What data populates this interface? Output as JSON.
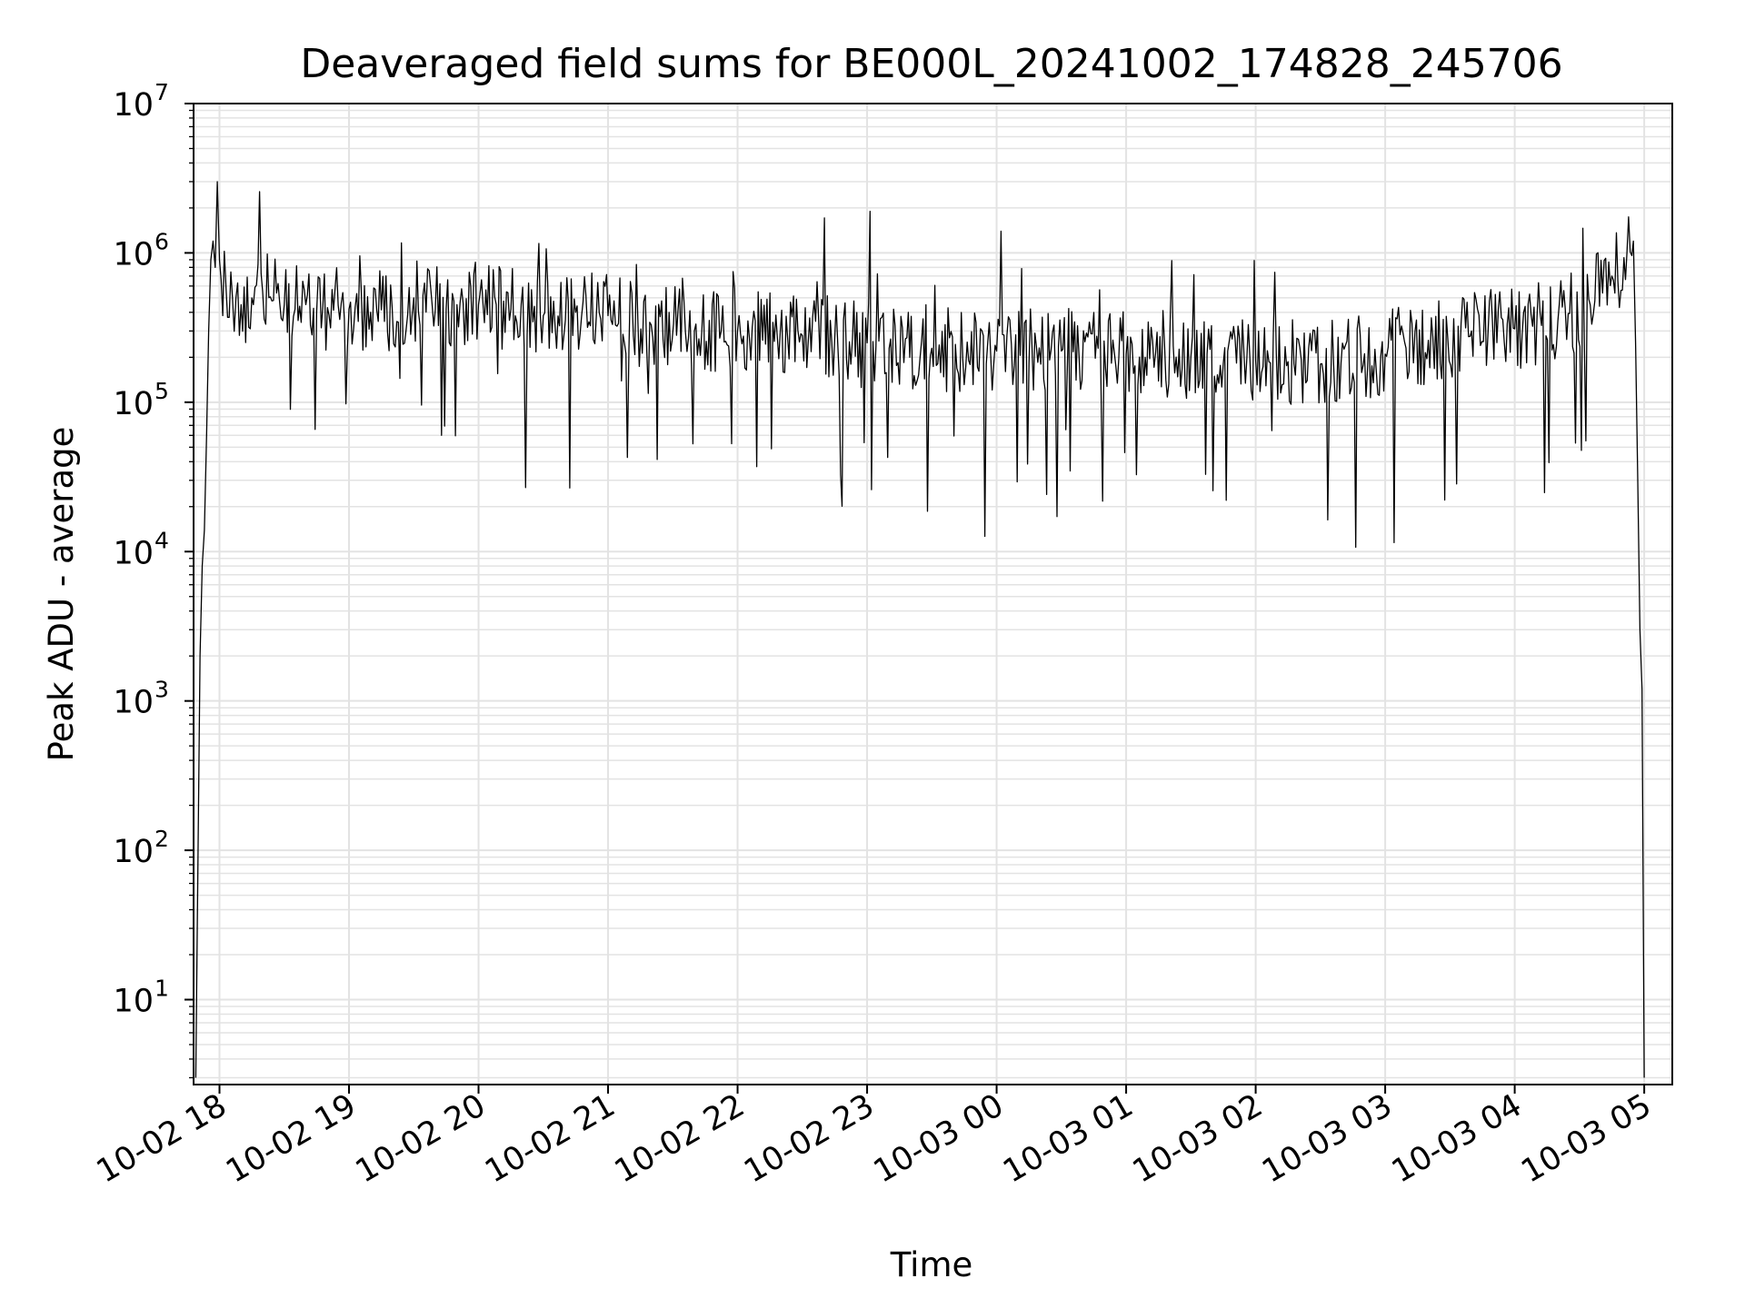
{
  "chart_data": {
    "type": "line",
    "title": "Deaveraged field sums for BE000L_20241002_174828_245706",
    "xlabel": "Time",
    "ylabel": "Peak ADU - average",
    "y_scale": "log",
    "ylim": [
      2.7,
      10000000
    ],
    "xlim": [
      "2024-10-02 17:48",
      "2024-10-03 05:13"
    ],
    "grid": true,
    "line_color": "#000000",
    "grid_color": "#e3e3e3",
    "x_ticks": [
      {
        "t": "2024-10-02 18:00",
        "label": "10-02 18"
      },
      {
        "t": "2024-10-02 19:00",
        "label": "10-02 19"
      },
      {
        "t": "2024-10-02 20:00",
        "label": "10-02 20"
      },
      {
        "t": "2024-10-02 21:00",
        "label": "10-02 21"
      },
      {
        "t": "2024-10-02 22:00",
        "label": "10-02 22"
      },
      {
        "t": "2024-10-02 23:00",
        "label": "10-02 23"
      },
      {
        "t": "2024-10-03 00:00",
        "label": "10-03 00"
      },
      {
        "t": "2024-10-03 01:00",
        "label": "10-03 01"
      },
      {
        "t": "2024-10-03 02:00",
        "label": "10-03 02"
      },
      {
        "t": "2024-10-03 03:00",
        "label": "10-03 03"
      },
      {
        "t": "2024-10-03 04:00",
        "label": "10-03 04"
      },
      {
        "t": "2024-10-03 05:00",
        "label": "10-03 05"
      }
    ],
    "y_ticks": [
      {
        "value": 10,
        "base": "10",
        "exp": "1"
      },
      {
        "value": 100,
        "base": "10",
        "exp": "2"
      },
      {
        "value": 1000,
        "base": "10",
        "exp": "3"
      },
      {
        "value": 10000,
        "base": "10",
        "exp": "4"
      },
      {
        "value": 100000,
        "base": "10",
        "exp": "5"
      },
      {
        "value": 1000000,
        "base": "10",
        "exp": "6"
      },
      {
        "value": 10000000,
        "base": "10",
        "exp": "7"
      }
    ],
    "series": [
      {
        "x": [
          "2024-10-02 17:49",
          "2024-10-02 17:51",
          "2024-10-02 17:52",
          "2024-10-02 17:53",
          "2024-10-02 17:54",
          "2024-10-02 17:55",
          "2024-10-02 17:56",
          "2024-10-02 17:57",
          "2024-10-02 17:58",
          "2024-10-02 17:59",
          "2024-10-02 18:00",
          "2024-10-02 18:03",
          "2024-10-02 18:06",
          "2024-10-02 18:10",
          "2024-10-02 18:15",
          "2024-10-02 18:20",
          "2024-10-02 18:25",
          "2024-10-02 18:30",
          "2024-10-02 18:35",
          "2024-10-02 18:40",
          "2024-10-02 18:45",
          "2024-10-02 18:50",
          "2024-10-02 19:00",
          "2024-10-02 19:10",
          "2024-10-02 19:20",
          "2024-10-02 19:30",
          "2024-10-02 19:40",
          "2024-10-02 19:50",
          "2024-10-02 20:00",
          "2024-10-02 20:15",
          "2024-10-02 20:30",
          "2024-10-02 20:45",
          "2024-10-02 21:00",
          "2024-10-02 21:20",
          "2024-10-02 21:40",
          "2024-10-02 22:00",
          "2024-10-02 22:30",
          "2024-10-02 23:00",
          "2024-10-02 23:30",
          "2024-10-03 00:00",
          "2024-10-03 00:30",
          "2024-10-03 01:00",
          "2024-10-03 01:30",
          "2024-10-03 02:00",
          "2024-10-03 02:30",
          "2024-10-03 03:00",
          "2024-10-03 03:20",
          "2024-10-03 03:40",
          "2024-10-03 04:00",
          "2024-10-03 04:20",
          "2024-10-03 04:35",
          "2024-10-03 04:45",
          "2024-10-03 04:52",
          "2024-10-03 04:55",
          "2024-10-03 04:56",
          "2024-10-03 04:57",
          "2024-10-03 04:58",
          "2024-10-03 04:59",
          "2024-10-03 05:00"
        ],
        "y": [
          3,
          2000,
          8000,
          14000,
          60000,
          300000,
          900000,
          1200000,
          800000,
          3000000,
          900000,
          600000,
          500000,
          450000,
          500000,
          550000,
          480000,
          450000,
          420000,
          450000,
          400000,
          430000,
          420000,
          400000,
          430000,
          500000,
          420000,
          450000,
          450000,
          420000,
          380000,
          400000,
          380000,
          330000,
          300000,
          300000,
          280000,
          250000,
          230000,
          220000,
          220000,
          210000,
          200000,
          190000,
          180000,
          210000,
          260000,
          300000,
          310000,
          350000,
          450000,
          700000,
          1000000,
          1200000,
          250000,
          30000,
          3000,
          1200,
          3
        ]
      }
    ]
  }
}
